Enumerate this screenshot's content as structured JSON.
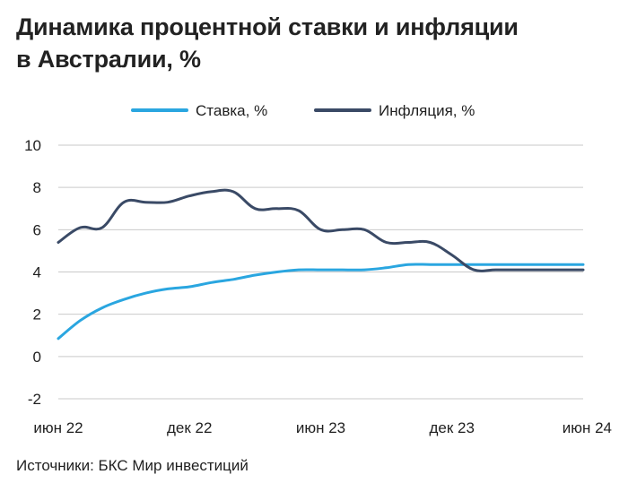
{
  "chart_data": {
    "type": "line",
    "title_lines": [
      "Динамика процентной ставки и инфляции",
      "в Австралии, %"
    ],
    "source": "Источники: БКС Мир инвестиций",
    "ylim": [
      -2,
      10
    ],
    "yticks": [
      "10",
      "8",
      "6",
      "4",
      "2",
      "0",
      "-2"
    ],
    "ytick_values": [
      10,
      8,
      6,
      4,
      2,
      0,
      -2
    ],
    "xlim": [
      0,
      24
    ],
    "xticks": [
      "июн 22",
      "дек 22",
      "июн 23",
      "дек 23",
      "июн 24"
    ],
    "xtick_values": [
      0,
      6,
      12,
      18,
      24
    ],
    "legend_position": "top-center",
    "grid": "horizontal",
    "series": [
      {
        "name": "Ставка, %",
        "color": "#2aa6e0",
        "x": [
          0,
          1,
          2,
          3,
          4,
          5,
          6,
          7,
          8,
          9,
          10,
          11,
          12,
          13,
          14,
          15,
          16,
          17,
          18,
          19,
          20,
          21,
          22,
          23,
          24
        ],
        "y": [
          0.85,
          1.7,
          2.3,
          2.7,
          3.0,
          3.2,
          3.3,
          3.5,
          3.65,
          3.85,
          4.0,
          4.1,
          4.1,
          4.1,
          4.1,
          4.2,
          4.35,
          4.35,
          4.35,
          4.35,
          4.35,
          4.35,
          4.35,
          4.35,
          4.35
        ]
      },
      {
        "name": "Инфляция, %",
        "color": "#3a4a66",
        "x": [
          0,
          1,
          2,
          3,
          4,
          5,
          6,
          7,
          8,
          9,
          10,
          11,
          12,
          13,
          14,
          15,
          16,
          17,
          18,
          19,
          20,
          21,
          22,
          23,
          24
        ],
        "y": [
          5.4,
          6.1,
          6.1,
          7.3,
          7.3,
          7.3,
          7.6,
          7.8,
          7.8,
          7.0,
          7.0,
          6.9,
          6.0,
          6.0,
          6.0,
          5.4,
          5.4,
          5.4,
          4.8,
          4.1,
          4.1,
          4.1,
          4.1,
          4.1,
          4.1
        ]
      }
    ]
  }
}
